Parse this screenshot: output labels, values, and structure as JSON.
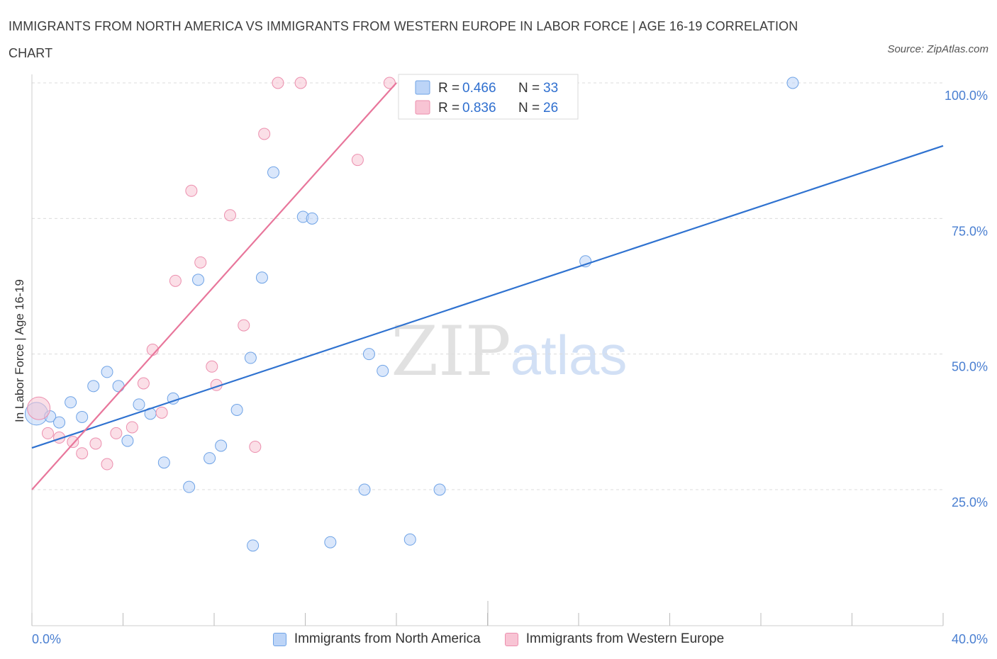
{
  "title": "IMMIGRANTS FROM NORTH AMERICA VS IMMIGRANTS FROM WESTERN EUROPE IN LABOR FORCE | AGE 16-19 CORRELATION CHART",
  "source": "Source: ZipAtlas.com",
  "watermark": {
    "zip": "ZIP",
    "atlas": "atlas"
  },
  "colors": {
    "blue": "#6fa3e6",
    "blue_fill": "#bcd4f7",
    "blue_line": "#2f72d0",
    "pink": "#ec8fae",
    "pink_fill": "#f8c4d4",
    "pink_line": "#e8769b",
    "axis_text": "#4a7fd1"
  },
  "legend_top": {
    "rows": [
      {
        "r_label": "R = ",
        "r_value": "0.466",
        "n_label": "N = ",
        "n_value": "33"
      },
      {
        "r_label": "R = ",
        "r_value": "0.836",
        "n_label": "N = ",
        "n_value": "26"
      }
    ]
  },
  "legend_bottom": [
    "Immigrants from North America",
    "Immigrants from Western Europe"
  ],
  "chart_data": {
    "type": "scatter",
    "title": "IMMIGRANTS FROM NORTH AMERICA VS IMMIGRANTS FROM WESTERN EUROPE IN LABOR FORCE | AGE 16-19 CORRELATION CHART",
    "xlabel": "",
    "ylabel": "In Labor Force | Age 16-19",
    "xlim": [
      0,
      40
    ],
    "ylim": [
      0,
      100
    ],
    "x_tick_labels": [
      "0.0%",
      "40.0%"
    ],
    "y_tick_labels": [
      "25.0%",
      "50.0%",
      "75.0%",
      "100.0%"
    ],
    "y_ticks": [
      25,
      50,
      75,
      100
    ],
    "grid": true,
    "legend_position": "top-center",
    "series": [
      {
        "name": "Immigrants from North America",
        "color": "#6fa3e6",
        "r": 0.466,
        "n": 33,
        "trend": {
          "x": [
            0,
            40
          ],
          "y": [
            32.7,
            88.4
          ]
        },
        "points": [
          {
            "x": 0.2,
            "y": 39.0,
            "big": true
          },
          {
            "x": 0.8,
            "y": 38.5
          },
          {
            "x": 1.2,
            "y": 37.4
          },
          {
            "x": 1.7,
            "y": 41.1
          },
          {
            "x": 2.2,
            "y": 38.4
          },
          {
            "x": 2.7,
            "y": 44.1
          },
          {
            "x": 3.3,
            "y": 46.7
          },
          {
            "x": 3.8,
            "y": 44.1
          },
          {
            "x": 4.2,
            "y": 34.0
          },
          {
            "x": 4.7,
            "y": 40.7
          },
          {
            "x": 5.2,
            "y": 39.0
          },
          {
            "x": 5.8,
            "y": 30.0
          },
          {
            "x": 6.2,
            "y": 41.8
          },
          {
            "x": 6.9,
            "y": 25.5
          },
          {
            "x": 7.3,
            "y": 63.7
          },
          {
            "x": 7.8,
            "y": 30.8
          },
          {
            "x": 8.3,
            "y": 33.1
          },
          {
            "x": 9.0,
            "y": 39.7
          },
          {
            "x": 9.6,
            "y": 49.3
          },
          {
            "x": 9.7,
            "y": 14.7
          },
          {
            "x": 10.1,
            "y": 64.1
          },
          {
            "x": 10.6,
            "y": 83.5
          },
          {
            "x": 11.9,
            "y": 75.3
          },
          {
            "x": 12.3,
            "y": 75.0
          },
          {
            "x": 13.1,
            "y": 15.3
          },
          {
            "x": 14.6,
            "y": 25.0
          },
          {
            "x": 14.8,
            "y": 50.0
          },
          {
            "x": 15.4,
            "y": 46.9
          },
          {
            "x": 16.6,
            "y": 15.8
          },
          {
            "x": 17.9,
            "y": 25.0
          },
          {
            "x": 20.8,
            "y": 100.0
          },
          {
            "x": 24.3,
            "y": 67.1
          },
          {
            "x": 33.4,
            "y": 100.0
          }
        ]
      },
      {
        "name": "Immigrants from Western Europe",
        "color": "#ec8fae",
        "r": 0.836,
        "n": 26,
        "trend": {
          "x": [
            0,
            16
          ],
          "y": [
            25.0,
            100.0
          ]
        },
        "points": [
          {
            "x": 0.3,
            "y": 40.0,
            "big": true
          },
          {
            "x": 0.7,
            "y": 35.4
          },
          {
            "x": 1.2,
            "y": 34.6
          },
          {
            "x": 1.8,
            "y": 33.8
          },
          {
            "x": 2.2,
            "y": 31.7
          },
          {
            "x": 2.8,
            "y": 33.5
          },
          {
            "x": 3.3,
            "y": 29.7
          },
          {
            "x": 3.7,
            "y": 35.4
          },
          {
            "x": 4.4,
            "y": 36.5
          },
          {
            "x": 4.9,
            "y": 44.6
          },
          {
            "x": 5.3,
            "y": 50.8
          },
          {
            "x": 5.7,
            "y": 39.2
          },
          {
            "x": 6.3,
            "y": 63.5
          },
          {
            "x": 7.0,
            "y": 80.1
          },
          {
            "x": 7.4,
            "y": 66.9
          },
          {
            "x": 7.9,
            "y": 47.7
          },
          {
            "x": 8.1,
            "y": 44.3
          },
          {
            "x": 8.7,
            "y": 75.6
          },
          {
            "x": 9.3,
            "y": 55.3
          },
          {
            "x": 9.8,
            "y": 32.9
          },
          {
            "x": 10.2,
            "y": 90.6
          },
          {
            "x": 10.8,
            "y": 100.0
          },
          {
            "x": 11.8,
            "y": 100.0
          },
          {
            "x": 14.3,
            "y": 85.8
          },
          {
            "x": 15.7,
            "y": 100.0
          },
          {
            "x": 16.5,
            "y": 100.0
          }
        ]
      }
    ]
  }
}
